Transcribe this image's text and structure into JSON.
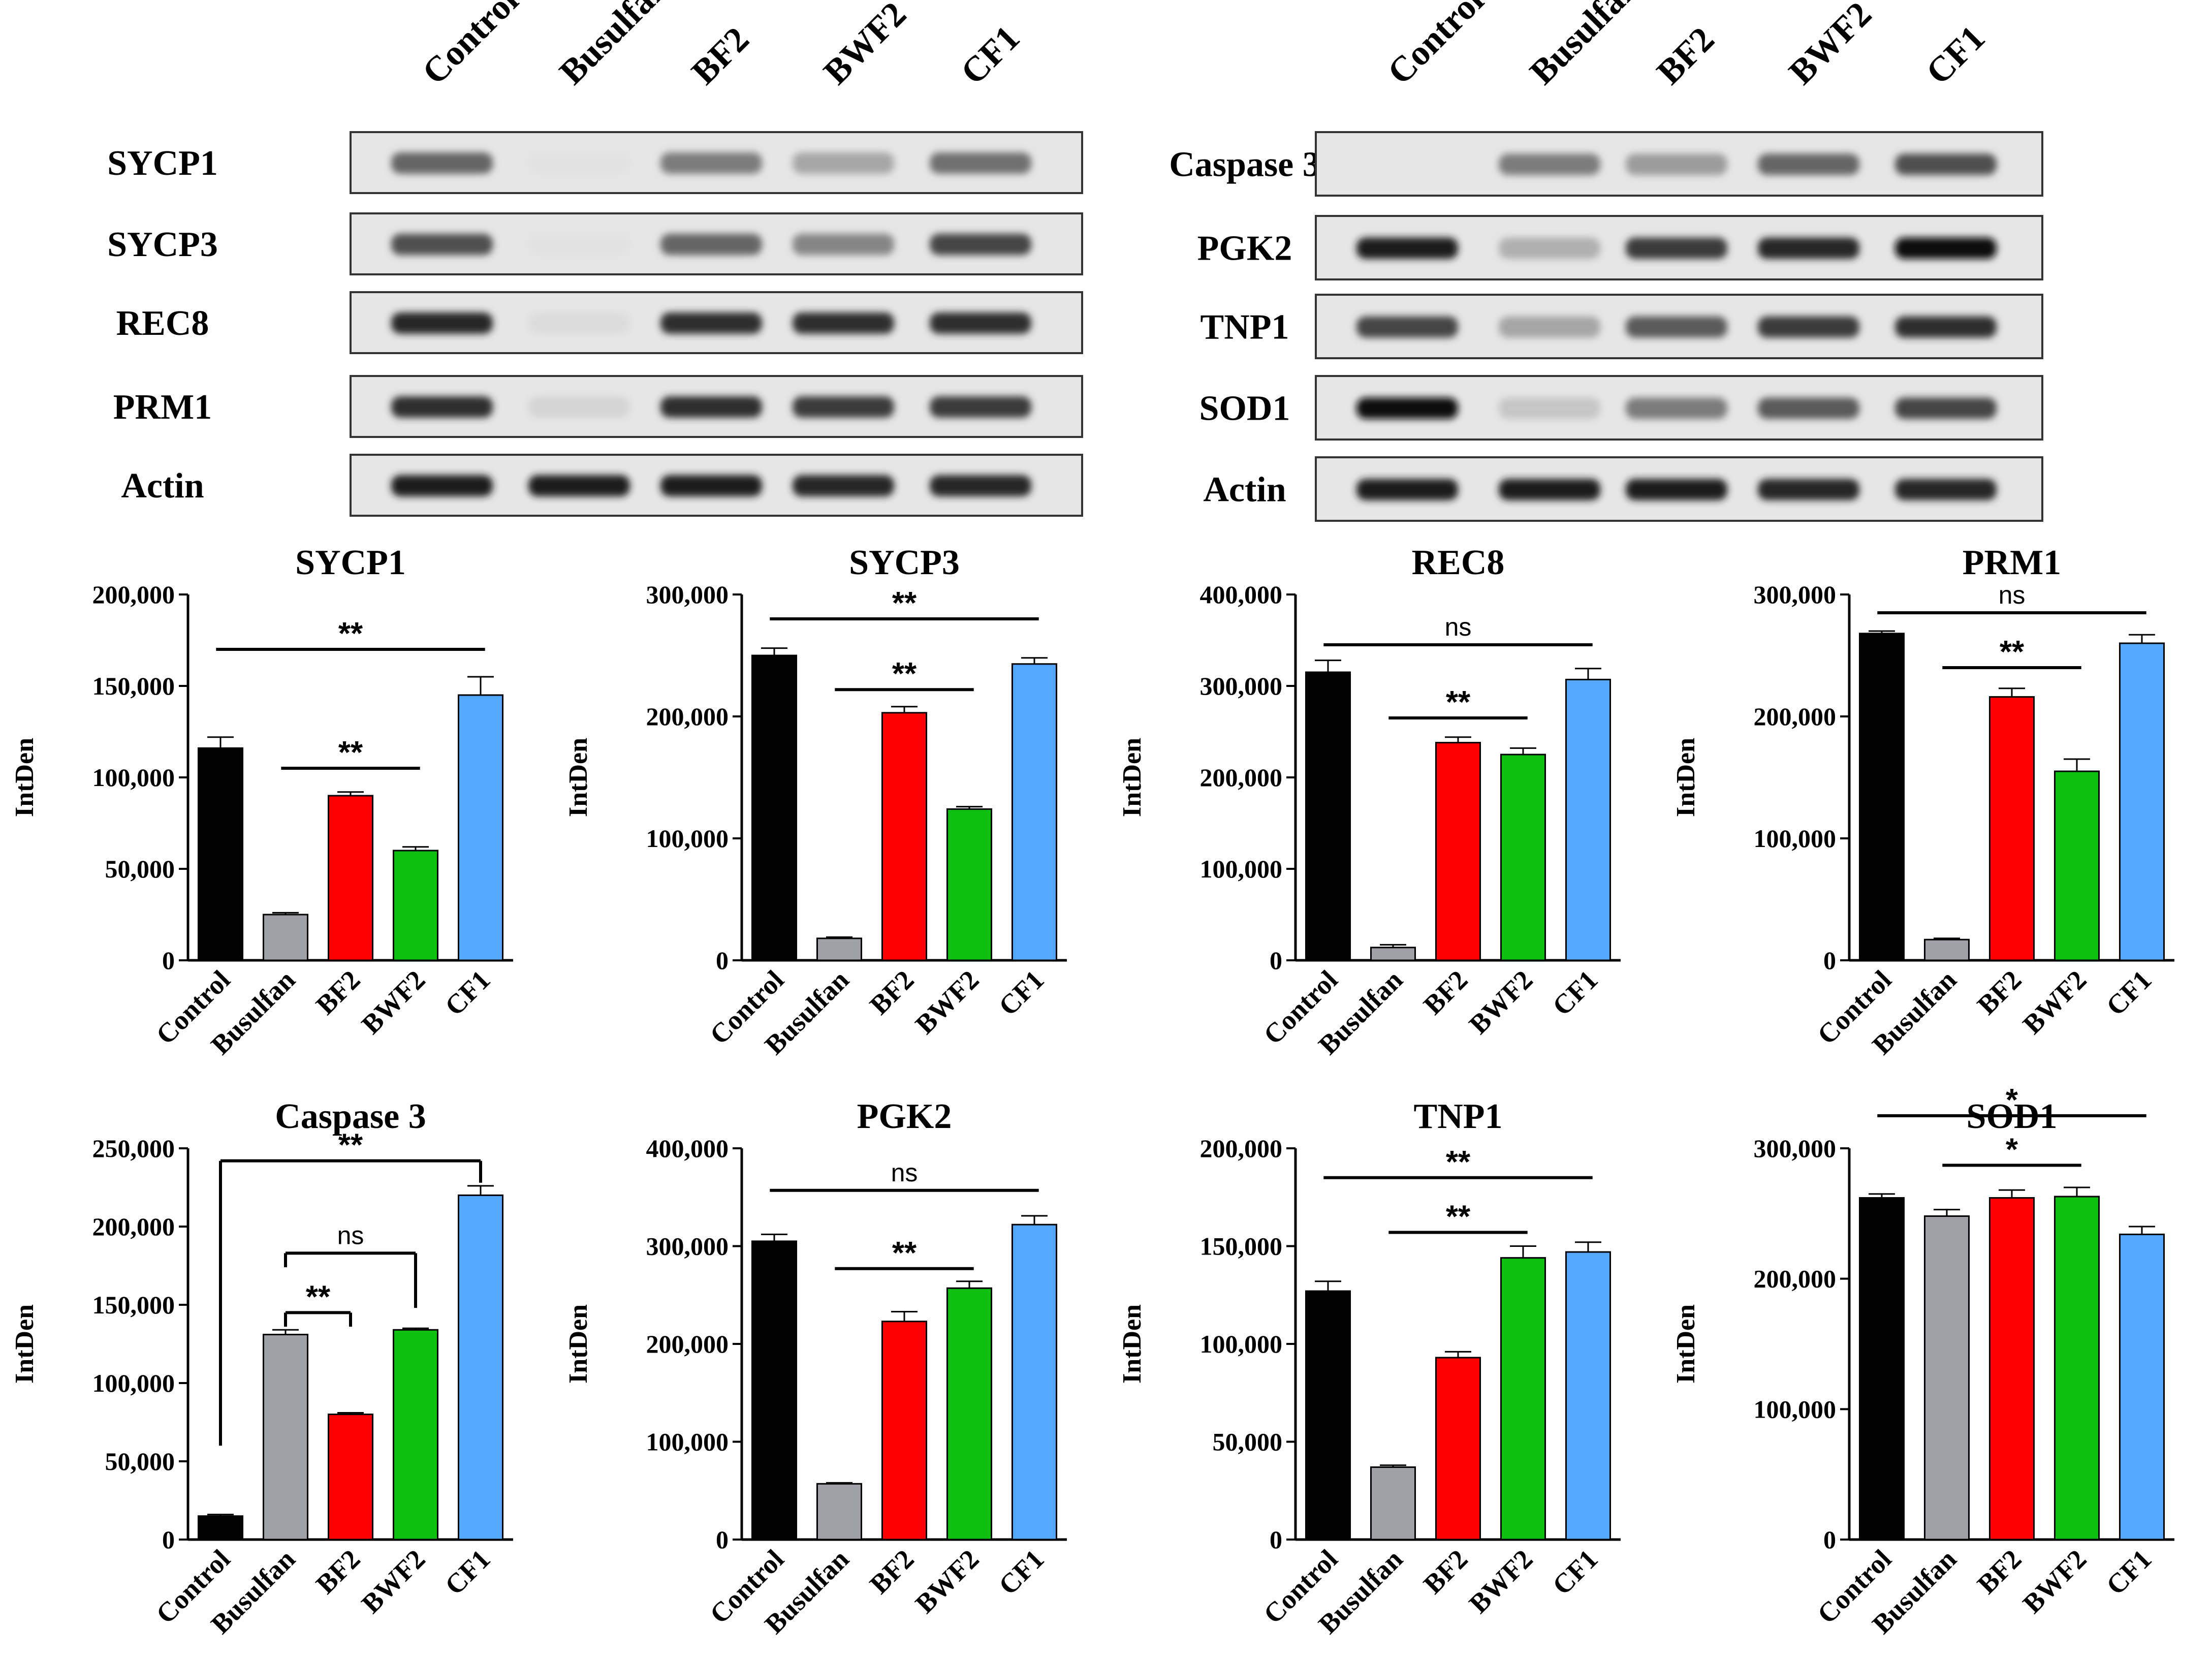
{
  "colors": {
    "Control": "#000000",
    "Busulfan": "#a0a0a8",
    "BF2": "#ff0000",
    "BWF2": "#10c010",
    "CF1": "#55a8ff"
  },
  "blots": [
    {
      "lanes": [
        "Control",
        "Busulfan",
        "BF2",
        "BWF2",
        "CF1"
      ],
      "rows": [
        {
          "label": "SYCP1",
          "intensity": [
            0.6,
            0.02,
            0.5,
            0.3,
            0.55
          ]
        },
        {
          "label": "SYCP3",
          "intensity": [
            0.7,
            0.02,
            0.6,
            0.45,
            0.75
          ]
        },
        {
          "label": "REC8",
          "intensity": [
            0.9,
            0.05,
            0.85,
            0.85,
            0.85
          ]
        },
        {
          "label": "PRM1",
          "intensity": [
            0.85,
            0.08,
            0.85,
            0.8,
            0.8
          ]
        },
        {
          "label": "Actin",
          "intensity": [
            0.95,
            0.95,
            0.95,
            0.9,
            0.9
          ]
        }
      ]
    },
    {
      "lanes": [
        "Control",
        "Busulfan",
        "BF2",
        "BWF2",
        "CF1"
      ],
      "rows": [
        {
          "label": "Caspase 3",
          "intensity": [
            0.0,
            0.5,
            0.35,
            0.6,
            0.7
          ]
        },
        {
          "label": "PGK2",
          "intensity": [
            0.95,
            0.25,
            0.8,
            0.9,
            1.0
          ]
        },
        {
          "label": "TNP1",
          "intensity": [
            0.75,
            0.3,
            0.65,
            0.8,
            0.85
          ]
        },
        {
          "label": "SOD1",
          "intensity": [
            1.0,
            0.15,
            0.5,
            0.65,
            0.75
          ]
        },
        {
          "label": "Actin",
          "intensity": [
            0.95,
            0.95,
            0.95,
            0.9,
            0.9
          ]
        }
      ]
    }
  ],
  "chart_data": [
    {
      "type": "bar",
      "title": "SYCP1",
      "ylabel": "IntDen",
      "categories": [
        "Control",
        "Busulfan",
        "BF2",
        "BWF2",
        "CF1"
      ],
      "values": [
        116000,
        25000,
        90000,
        60000,
        145000
      ],
      "errors": [
        6000,
        1000,
        2000,
        2000,
        10000
      ],
      "ylim": [
        0,
        200000
      ],
      "yticks": [
        "0",
        "50,000",
        "100,000",
        "150,000",
        "200,000"
      ],
      "significance": [
        {
          "from": 0,
          "to": 4,
          "label": "**",
          "y": 170000,
          "style": "line"
        },
        {
          "from": 1,
          "to": 3,
          "label": "**",
          "y": 105000,
          "style": "line"
        }
      ]
    },
    {
      "type": "bar",
      "title": "SYCP3",
      "ylabel": "IntDen",
      "categories": [
        "Control",
        "Busulfan",
        "BF2",
        "BWF2",
        "CF1"
      ],
      "values": [
        250000,
        18000,
        203000,
        124000,
        243000
      ],
      "errors": [
        6000,
        1000,
        5000,
        2000,
        5000
      ],
      "ylim": [
        0,
        300000
      ],
      "yticks": [
        "0",
        "100,000",
        "200,000",
        "300,000"
      ],
      "significance": [
        {
          "from": 0,
          "to": 4,
          "label": "**",
          "y": 280000,
          "style": "line"
        },
        {
          "from": 1,
          "to": 3,
          "label": "**",
          "y": 222000,
          "style": "line"
        }
      ]
    },
    {
      "type": "bar",
      "title": "REC8",
      "ylabel": "IntDen",
      "categories": [
        "Control",
        "Busulfan",
        "BF2",
        "BWF2",
        "CF1"
      ],
      "values": [
        315000,
        14000,
        238000,
        225000,
        307000
      ],
      "errors": [
        13000,
        3000,
        6000,
        7000,
        12000
      ],
      "ylim": [
        0,
        400000
      ],
      "yticks": [
        "0",
        "100,000",
        "200,000",
        "300,000",
        "400,000"
      ],
      "significance": [
        {
          "from": 0,
          "to": 4,
          "label": "ns",
          "y": 345000,
          "style": "line"
        },
        {
          "from": 1,
          "to": 3,
          "label": "**",
          "y": 265000,
          "style": "line"
        }
      ]
    },
    {
      "type": "bar",
      "title": "PRM1",
      "ylabel": "IntDen",
      "categories": [
        "Control",
        "Busulfan",
        "BF2",
        "BWF2",
        "CF1"
      ],
      "values": [
        268000,
        17000,
        216000,
        155000,
        260000
      ],
      "errors": [
        2000,
        1000,
        7000,
        10000,
        7000
      ],
      "ylim": [
        0,
        300000
      ],
      "yticks": [
        "0",
        "100,000",
        "200,000",
        "300,000"
      ],
      "significance": [
        {
          "from": 0,
          "to": 4,
          "label": "ns",
          "y": 285000,
          "style": "line"
        },
        {
          "from": 1,
          "to": 3,
          "label": "**",
          "y": 240000,
          "style": "line"
        }
      ]
    },
    {
      "type": "bar",
      "title": "Caspase 3",
      "ylabel": "IntDen",
      "categories": [
        "Control",
        "Busulfan",
        "BF2",
        "BWF2",
        "CF1"
      ],
      "values": [
        15000,
        131000,
        80000,
        134000,
        220000
      ],
      "errors": [
        1000,
        3000,
        1000,
        1000,
        6000
      ],
      "ylim": [
        0,
        250000
      ],
      "yticks": [
        "0",
        "50,000",
        "100,000",
        "150,000",
        "200,000",
        "250,000"
      ],
      "significance": [
        {
          "from": 0,
          "to": 4,
          "label": "**",
          "y": 242000,
          "style": "bracket",
          "drop": [
            60000,
            228000
          ]
        },
        {
          "from": 1,
          "to": 3,
          "label": "ns",
          "y": 183000,
          "style": "bracket",
          "drop": [
            174000,
            148000
          ]
        },
        {
          "from": 1,
          "to": 2,
          "label": "**",
          "y": 145000,
          "style": "bracket",
          "drop": [
            136000,
            136000
          ]
        }
      ]
    },
    {
      "type": "bar",
      "title": "PGK2",
      "ylabel": "IntDen",
      "categories": [
        "Control",
        "Busulfan",
        "BF2",
        "BWF2",
        "CF1"
      ],
      "values": [
        305000,
        57000,
        223000,
        257000,
        322000
      ],
      "errors": [
        7000,
        1000,
        10000,
        7000,
        9000
      ],
      "ylim": [
        0,
        400000
      ],
      "yticks": [
        "0",
        "100,000",
        "200,000",
        "300,000",
        "400,000"
      ],
      "significance": [
        {
          "from": 0,
          "to": 4,
          "label": "ns",
          "y": 357000,
          "style": "line"
        },
        {
          "from": 1,
          "to": 3,
          "label": "**",
          "y": 277000,
          "style": "line"
        }
      ]
    },
    {
      "type": "bar",
      "title": "TNP1",
      "ylabel": "IntDen",
      "categories": [
        "Control",
        "Busulfan",
        "BF2",
        "BWF2",
        "CF1"
      ],
      "values": [
        127000,
        37000,
        93000,
        144000,
        147000
      ],
      "errors": [
        5000,
        1000,
        3000,
        6000,
        5000
      ],
      "ylim": [
        0,
        200000
      ],
      "yticks": [
        "0",
        "50,000",
        "100,000",
        "150,000",
        "200,000"
      ],
      "significance": [
        {
          "from": 0,
          "to": 4,
          "label": "**",
          "y": 185000,
          "style": "line"
        },
        {
          "from": 1,
          "to": 3,
          "label": "**",
          "y": 157000,
          "style": "line"
        }
      ]
    },
    {
      "type": "bar",
      "title": "SOD1",
      "ylabel": "IntDen",
      "categories": [
        "Control",
        "Busulfan",
        "BF2",
        "BWF2",
        "CF1"
      ],
      "values": [
        262000,
        248000,
        262000,
        263000,
        234000
      ],
      "errors": [
        3000,
        5000,
        6000,
        7000,
        6000
      ],
      "ylim": [
        0,
        300000
      ],
      "yticks": [
        "0",
        "100,000",
        "200,000",
        "300,000"
      ],
      "significance": [
        {
          "from": 0,
          "to": 4,
          "label": "*",
          "y": 325000,
          "style": "line"
        },
        {
          "from": 1,
          "to": 3,
          "label": "*",
          "y": 287000,
          "style": "line"
        }
      ]
    }
  ]
}
